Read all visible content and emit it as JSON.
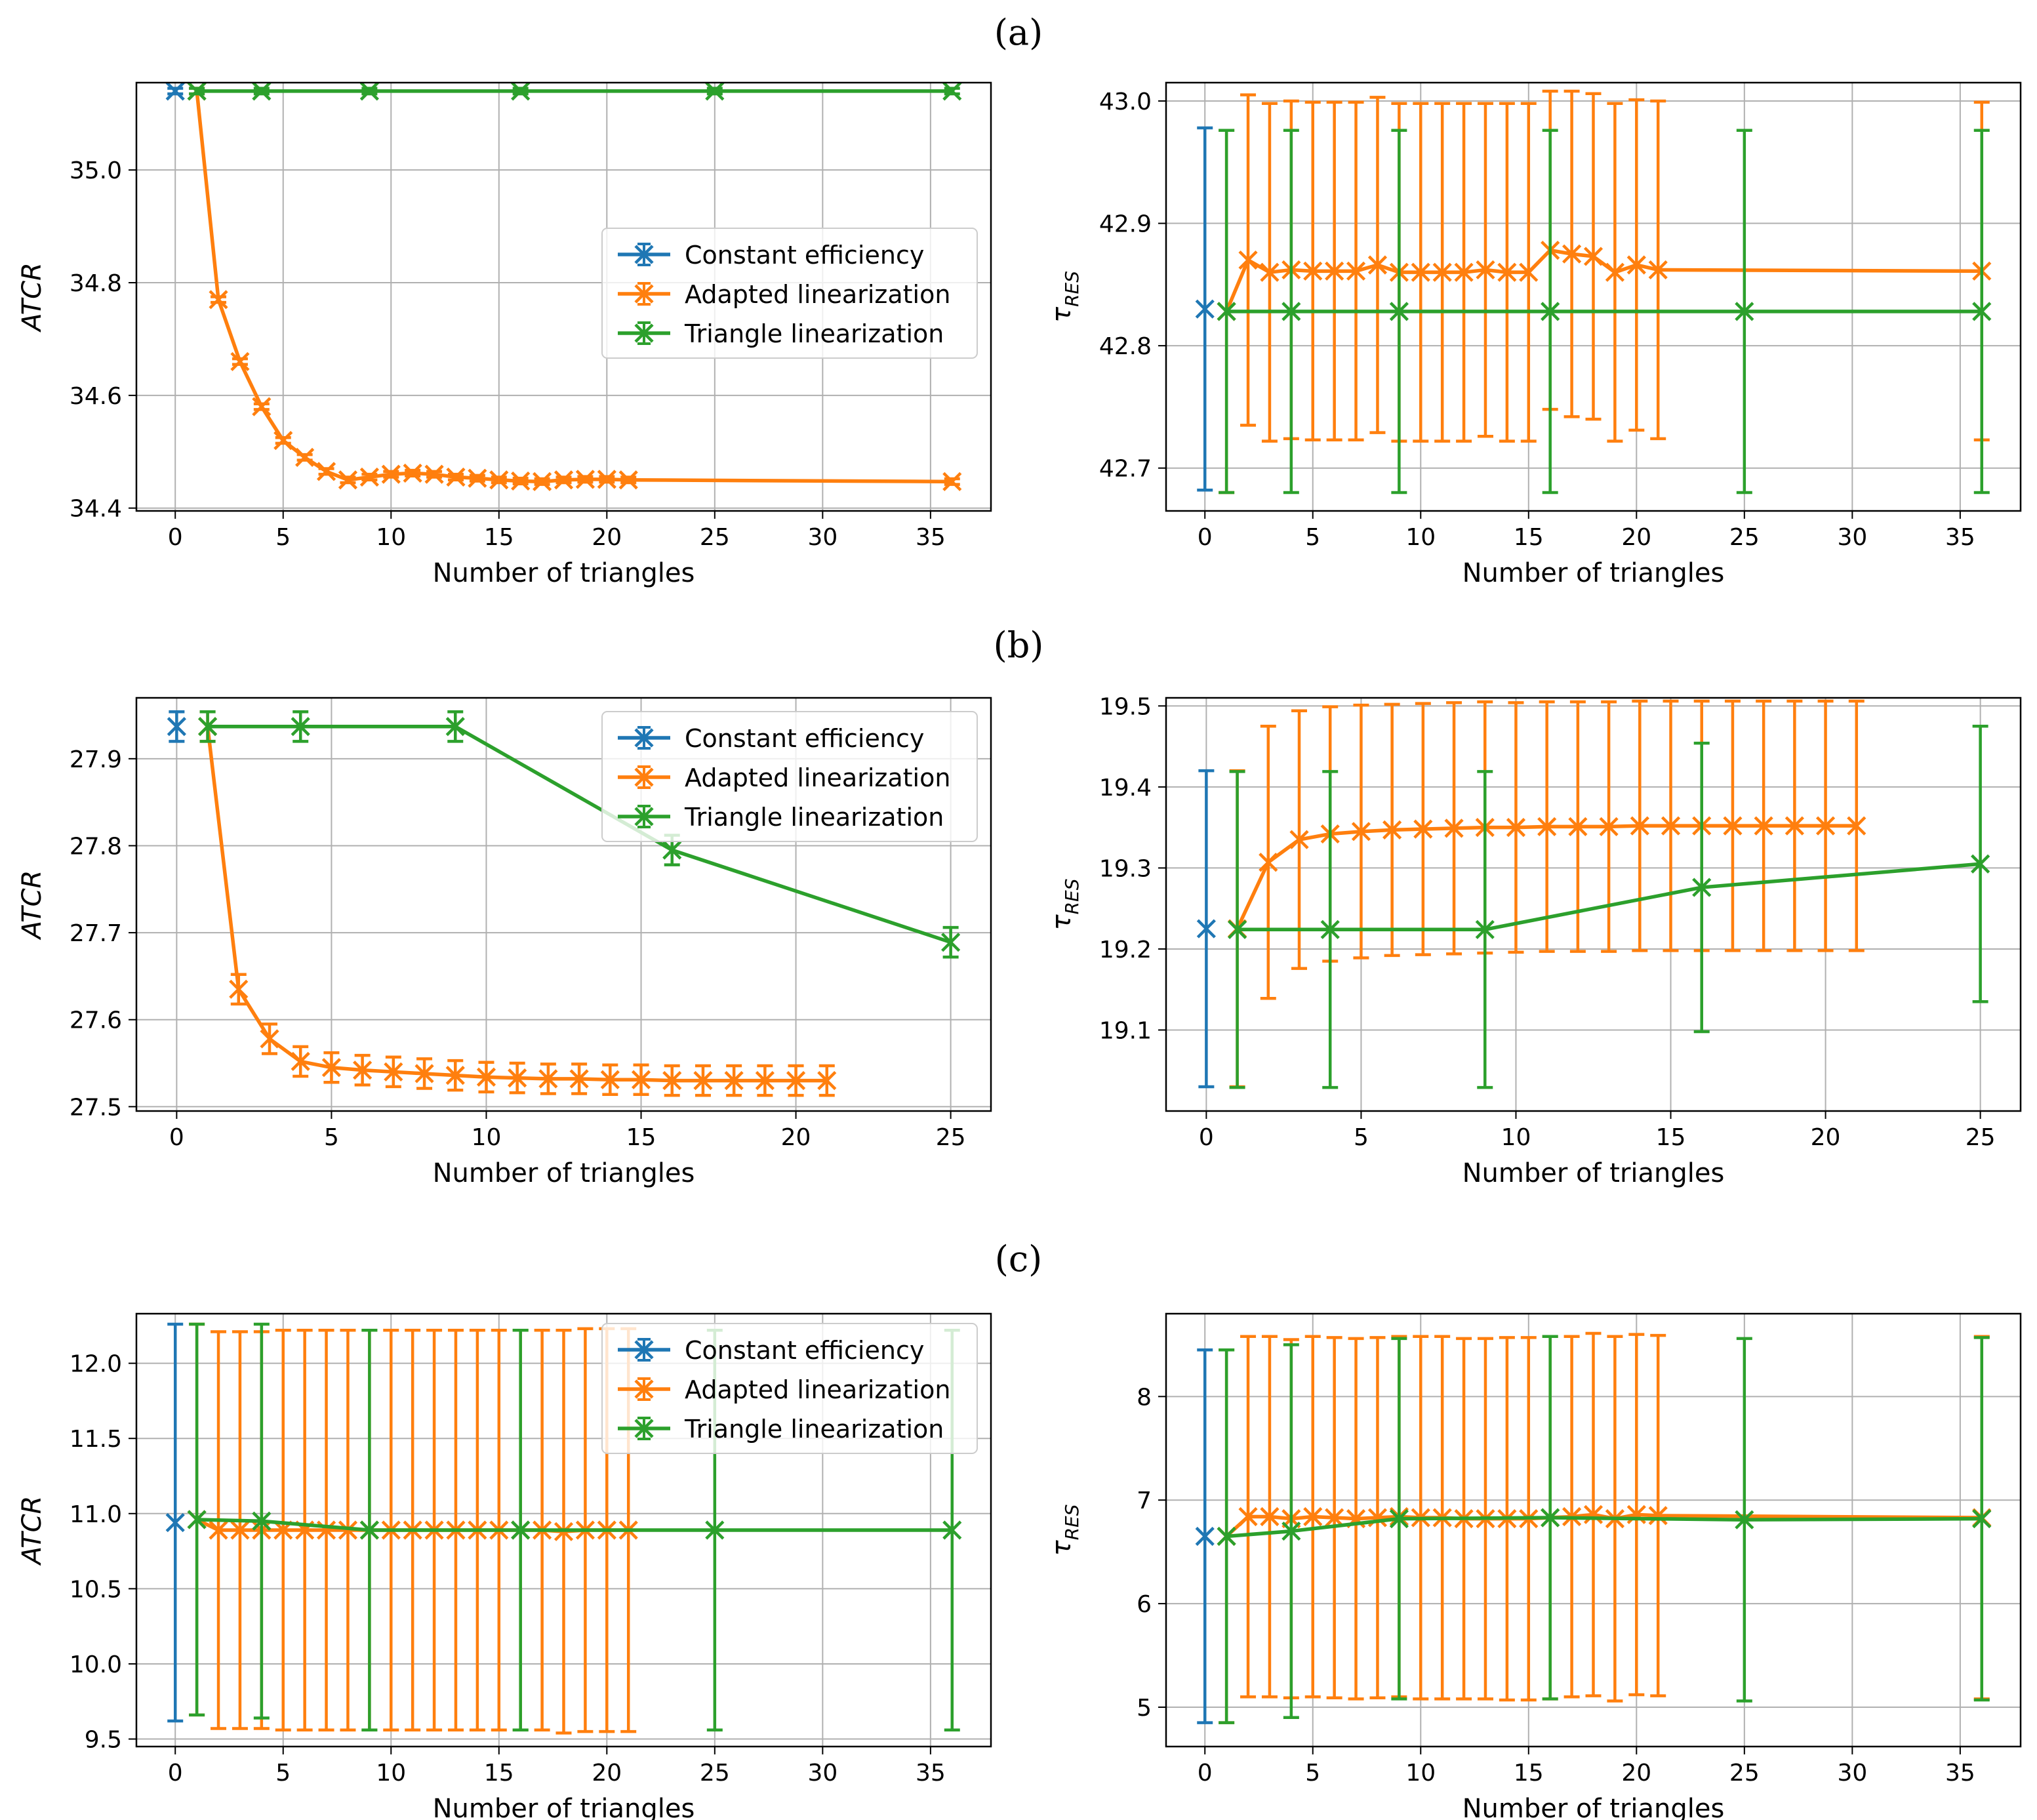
{
  "figure": {
    "panel_labels": [
      "(a)",
      "(b)",
      "(c)"
    ],
    "colors": {
      "constant": "#1f77b4",
      "adapted": "#ff7f0e",
      "triangle": "#2ca02c"
    }
  },
  "chart_data": [
    {
      "id": "a-atcr",
      "panel": "(a)",
      "type": "line",
      "xlabel": "Number of triangles",
      "ylabel": "ATCR",
      "ylabel_italic": true,
      "xlim": [
        -1.8,
        37.8
      ],
      "ylim": [
        34.395,
        35.155
      ],
      "xticks": [
        0,
        5,
        10,
        15,
        20,
        25,
        30,
        35
      ],
      "yticks": [
        34.4,
        34.6,
        34.8,
        35.0
      ],
      "ytick_labels": [
        "34.4",
        "34.6",
        "34.8",
        "35.0"
      ],
      "legend": {
        "entries": [
          "Constant efficiency",
          "Adapted linearization",
          "Triangle linearization"
        ],
        "placement": "center-right"
      },
      "series": [
        {
          "name": "Constant efficiency",
          "color_key": "constant",
          "x": [
            0
          ],
          "y": [
            35.14
          ],
          "err": [
            0.005
          ]
        },
        {
          "name": "Adapted linearization",
          "color_key": "adapted",
          "x": [
            1,
            2,
            3,
            4,
            5,
            6,
            7,
            8,
            9,
            10,
            11,
            12,
            13,
            14,
            15,
            16,
            17,
            18,
            19,
            20,
            21,
            36
          ],
          "y": [
            35.14,
            34.77,
            34.66,
            34.58,
            34.52,
            34.49,
            34.465,
            34.45,
            34.455,
            34.46,
            34.462,
            34.46,
            34.455,
            34.453,
            34.45,
            34.448,
            34.447,
            34.45,
            34.451,
            34.451,
            34.45,
            34.447
          ],
          "err": [
            0.005,
            0.005,
            0.005,
            0.005,
            0.005,
            0.005,
            0.005,
            0.005,
            0.005,
            0.005,
            0.005,
            0.005,
            0.005,
            0.005,
            0.005,
            0.005,
            0.005,
            0.005,
            0.005,
            0.005,
            0.005,
            0.005
          ]
        },
        {
          "name": "Triangle linearization",
          "color_key": "triangle",
          "x": [
            1,
            4,
            9,
            16,
            25,
            36
          ],
          "y": [
            35.14,
            35.14,
            35.14,
            35.14,
            35.14,
            35.14
          ],
          "err": [
            0.005,
            0.005,
            0.005,
            0.005,
            0.005,
            0.005
          ]
        }
      ]
    },
    {
      "id": "a-tau",
      "panel": "(a)",
      "type": "line",
      "xlabel": "Number of triangles",
      "ylabel": "τ",
      "ylabel_sub": "RES",
      "xlim": [
        -1.8,
        37.8
      ],
      "ylim": [
        42.665,
        43.015
      ],
      "xticks": [
        0,
        5,
        10,
        15,
        20,
        25,
        30,
        35
      ],
      "yticks": [
        42.7,
        42.8,
        42.9,
        43.0
      ],
      "ytick_labels": [
        "42.7",
        "42.8",
        "42.9",
        "43.0"
      ],
      "series": [
        {
          "name": "Constant efficiency",
          "color_key": "constant",
          "x": [
            0
          ],
          "y": [
            42.83
          ],
          "err": [
            0.148
          ]
        },
        {
          "name": "Adapted linearization",
          "color_key": "adapted",
          "x": [
            1,
            2,
            3,
            4,
            5,
            6,
            7,
            8,
            9,
            10,
            11,
            12,
            13,
            14,
            15,
            16,
            17,
            18,
            19,
            20,
            21,
            36
          ],
          "y": [
            42.828,
            42.87,
            42.86,
            42.862,
            42.861,
            42.861,
            42.861,
            42.866,
            42.86,
            42.86,
            42.86,
            42.86,
            42.862,
            42.86,
            42.86,
            42.878,
            42.875,
            42.873,
            42.86,
            42.866,
            42.862,
            42.861
          ],
          "err": [
            0.148,
            0.135,
            0.138,
            0.138,
            0.138,
            0.138,
            0.138,
            0.137,
            0.138,
            0.138,
            0.138,
            0.138,
            0.136,
            0.138,
            0.138,
            0.13,
            0.133,
            0.133,
            0.138,
            0.135,
            0.138,
            0.138
          ]
        },
        {
          "name": "Triangle linearization",
          "color_key": "triangle",
          "x": [
            1,
            4,
            9,
            16,
            25,
            36
          ],
          "y": [
            42.828,
            42.828,
            42.828,
            42.828,
            42.828,
            42.828
          ],
          "err": [
            0.148,
            0.148,
            0.148,
            0.148,
            0.148,
            0.148
          ]
        }
      ]
    },
    {
      "id": "b-atcr",
      "panel": "(b)",
      "type": "line",
      "xlabel": "Number of triangles",
      "ylabel": "ATCR",
      "ylabel_italic": true,
      "xlim": [
        -1.3,
        26.3
      ],
      "ylim": [
        27.495,
        27.97
      ],
      "xticks": [
        0,
        5,
        10,
        15,
        20,
        25
      ],
      "yticks": [
        27.5,
        27.6,
        27.7,
        27.8,
        27.9
      ],
      "ytick_labels": [
        "27.5",
        "27.6",
        "27.7",
        "27.8",
        "27.9"
      ],
      "legend": {
        "entries": [
          "Constant efficiency",
          "Adapted linearization",
          "Triangle linearization"
        ],
        "placement": "top-right"
      },
      "series": [
        {
          "name": "Constant efficiency",
          "color_key": "constant",
          "x": [
            0
          ],
          "y": [
            27.937
          ],
          "err": [
            0.017
          ]
        },
        {
          "name": "Adapted linearization",
          "color_key": "adapted",
          "x": [
            1,
            2,
            3,
            4,
            5,
            6,
            7,
            8,
            9,
            10,
            11,
            12,
            13,
            14,
            15,
            16,
            17,
            18,
            19,
            20,
            21
          ],
          "y": [
            27.937,
            27.635,
            27.578,
            27.552,
            27.545,
            27.542,
            27.54,
            27.538,
            27.536,
            27.534,
            27.533,
            27.532,
            27.532,
            27.531,
            27.531,
            27.53,
            27.53,
            27.53,
            27.53,
            27.53,
            27.53
          ],
          "err": [
            0.017,
            0.017,
            0.017,
            0.017,
            0.017,
            0.017,
            0.017,
            0.017,
            0.017,
            0.017,
            0.017,
            0.017,
            0.017,
            0.017,
            0.017,
            0.017,
            0.017,
            0.017,
            0.017,
            0.017,
            0.017
          ]
        },
        {
          "name": "Triangle linearization",
          "color_key": "triangle",
          "x": [
            1,
            4,
            9,
            16,
            25
          ],
          "y": [
            27.937,
            27.937,
            27.937,
            27.795,
            27.689
          ],
          "err": [
            0.017,
            0.017,
            0.017,
            0.017,
            0.017
          ]
        }
      ]
    },
    {
      "id": "b-tau",
      "panel": "(b)",
      "type": "line",
      "xlabel": "Number of triangles",
      "ylabel": "τ",
      "ylabel_sub": "RES",
      "xlim": [
        -1.3,
        26.3
      ],
      "ylim": [
        19.0,
        19.51
      ],
      "xticks": [
        0,
        5,
        10,
        15,
        20,
        25
      ],
      "yticks": [
        19.1,
        19.2,
        19.3,
        19.4,
        19.5
      ],
      "ytick_labels": [
        "19.1",
        "19.2",
        "19.3",
        "19.4",
        "19.5"
      ],
      "series": [
        {
          "name": "Constant efficiency",
          "color_key": "constant",
          "x": [
            0
          ],
          "y": [
            19.225
          ],
          "err": [
            0.195
          ]
        },
        {
          "name": "Adapted linearization",
          "color_key": "adapted",
          "x": [
            1,
            2,
            3,
            4,
            5,
            6,
            7,
            8,
            9,
            10,
            11,
            12,
            13,
            14,
            15,
            16,
            17,
            18,
            19,
            20,
            21
          ],
          "y": [
            19.225,
            19.307,
            19.335,
            19.342,
            19.345,
            19.347,
            19.348,
            19.349,
            19.35,
            19.35,
            19.351,
            19.351,
            19.351,
            19.352,
            19.352,
            19.352,
            19.352,
            19.352,
            19.352,
            19.352,
            19.352
          ],
          "err": [
            0.195,
            0.168,
            0.159,
            0.157,
            0.156,
            0.155,
            0.155,
            0.155,
            0.155,
            0.154,
            0.154,
            0.154,
            0.154,
            0.154,
            0.154,
            0.154,
            0.154,
            0.154,
            0.154,
            0.154,
            0.154
          ]
        },
        {
          "name": "Triangle linearization",
          "color_key": "triangle",
          "x": [
            1,
            4,
            9,
            16,
            25
          ],
          "y": [
            19.224,
            19.224,
            19.224,
            19.276,
            19.305
          ],
          "err": [
            0.195,
            0.195,
            0.195,
            0.178,
            0.17
          ]
        }
      ]
    },
    {
      "id": "c-atcr",
      "panel": "(c)",
      "type": "line",
      "xlabel": "Number of triangles",
      "ylabel": "ATCR",
      "ylabel_italic": true,
      "xlim": [
        -1.8,
        37.8
      ],
      "ylim": [
        9.45,
        12.33
      ],
      "xticks": [
        0,
        5,
        10,
        15,
        20,
        25,
        30,
        35
      ],
      "yticks": [
        9.5,
        10.0,
        10.5,
        11.0,
        11.5,
        12.0
      ],
      "ytick_labels": [
        "9.5",
        "10.0",
        "10.5",
        "11.0",
        "11.5",
        "12.0"
      ],
      "legend": {
        "entries": [
          "Constant efficiency",
          "Adapted linearization",
          "Triangle linearization"
        ],
        "placement": "top-right"
      },
      "series": [
        {
          "name": "Constant efficiency",
          "color_key": "constant",
          "x": [
            0
          ],
          "y": [
            10.94
          ],
          "err": [
            1.32
          ]
        },
        {
          "name": "Adapted linearization",
          "color_key": "adapted",
          "x": [
            1,
            2,
            3,
            4,
            5,
            6,
            7,
            8,
            9,
            10,
            11,
            12,
            13,
            14,
            15,
            16,
            17,
            18,
            19,
            20,
            21
          ],
          "y": [
            10.96,
            10.89,
            10.89,
            10.89,
            10.89,
            10.89,
            10.89,
            10.89,
            10.89,
            10.89,
            10.89,
            10.89,
            10.89,
            10.89,
            10.89,
            10.89,
            10.89,
            10.88,
            10.89,
            10.89,
            10.89
          ],
          "err": [
            1.3,
            1.32,
            1.32,
            1.32,
            1.33,
            1.33,
            1.33,
            1.33,
            1.33,
            1.33,
            1.33,
            1.33,
            1.33,
            1.33,
            1.33,
            1.33,
            1.33,
            1.34,
            1.34,
            1.34,
            1.34
          ]
        },
        {
          "name": "Triangle linearization",
          "color_key": "triangle",
          "x": [
            1,
            4,
            9,
            16,
            25,
            36
          ],
          "y": [
            10.96,
            10.95,
            10.89,
            10.89,
            10.89,
            10.89
          ],
          "err": [
            1.3,
            1.31,
            1.33,
            1.33,
            1.33,
            1.33
          ]
        }
      ]
    },
    {
      "id": "c-tau",
      "panel": "(c)",
      "type": "line",
      "xlabel": "Number of triangles",
      "ylabel": "τ",
      "ylabel_sub": "RES",
      "xlim": [
        -1.8,
        37.8
      ],
      "ylim": [
        4.62,
        8.8
      ],
      "xticks": [
        0,
        5,
        10,
        15,
        20,
        25,
        30,
        35
      ],
      "yticks": [
        5,
        6,
        7,
        8
      ],
      "ytick_labels": [
        "5",
        "6",
        "7",
        "8"
      ],
      "series": [
        {
          "name": "Constant efficiency",
          "color_key": "constant",
          "x": [
            0
          ],
          "y": [
            6.65
          ],
          "err": [
            1.8
          ]
        },
        {
          "name": "Adapted linearization",
          "color_key": "adapted",
          "x": [
            1,
            2,
            3,
            4,
            5,
            6,
            7,
            8,
            9,
            10,
            11,
            12,
            13,
            14,
            15,
            16,
            17,
            18,
            19,
            20,
            21,
            36
          ],
          "y": [
            6.65,
            6.84,
            6.84,
            6.82,
            6.84,
            6.83,
            6.82,
            6.83,
            6.84,
            6.83,
            6.83,
            6.82,
            6.82,
            6.82,
            6.82,
            6.83,
            6.84,
            6.86,
            6.82,
            6.86,
            6.85,
            6.83
          ],
          "err": [
            1.8,
            1.74,
            1.74,
            1.73,
            1.74,
            1.74,
            1.74,
            1.74,
            1.74,
            1.75,
            1.75,
            1.74,
            1.74,
            1.75,
            1.75,
            1.75,
            1.74,
            1.75,
            1.76,
            1.74,
            1.74,
            1.75
          ]
        },
        {
          "name": "Triangle linearization",
          "color_key": "triangle",
          "x": [
            1,
            4,
            9,
            16,
            25,
            36
          ],
          "y": [
            6.65,
            6.7,
            6.82,
            6.83,
            6.81,
            6.82
          ],
          "err": [
            1.8,
            1.8,
            1.74,
            1.75,
            1.75,
            1.75
          ]
        }
      ]
    }
  ]
}
